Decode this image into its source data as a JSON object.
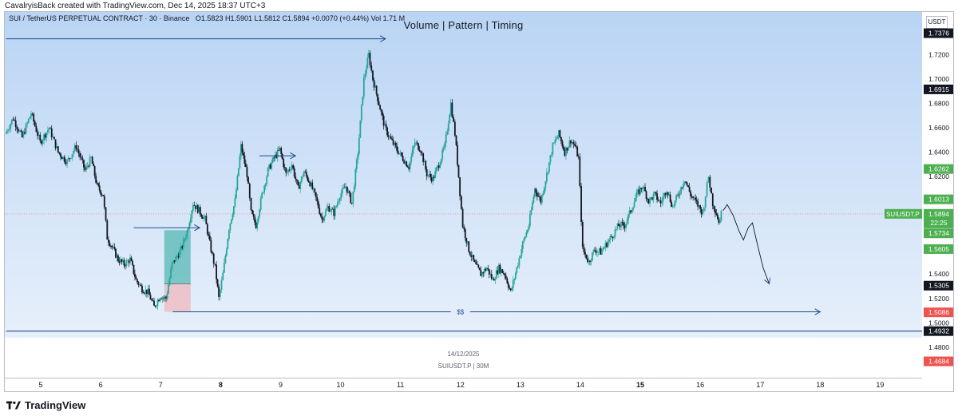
{
  "caption": "CavalryisBack created with TradingView.com, Dec 14, 2025 18:37 UTC+3",
  "symbol_line": {
    "symbol": "SUI / TetherUS PERPETUAL CONTRACT · 30 · Binance",
    "ohlc": "O1.5823  H1.5901  L1.5812  C1.5894  +0.0070 (+0.44%)  Vol 1.71 M"
  },
  "currency": "USDT",
  "footer_brand": "TradingView",
  "colors": {
    "up": "#26a69a",
    "down": "#ef5350",
    "candle_body": "#131722",
    "line": "#1e4d8c",
    "green_label": "#4caf50",
    "red_label": "#ef5350",
    "black_label": "#131722"
  },
  "chart_data": {
    "type": "candlestick",
    "title": "Volume  |  Pattern  |  Timing",
    "watermark_date": "14/12/2025",
    "watermark_symbol": "SUIUSDT.P | 30M",
    "ylim": [
      1.455,
      1.755
    ],
    "xlim": [
      4.4,
      19.7
    ],
    "yticks": [
      "1.7200",
      "1.7000",
      "1.6800",
      "1.6600",
      "1.6400",
      "1.6200",
      "1.5400",
      "1.5200",
      "1.5000",
      "1.4800"
    ],
    "xticks": [
      {
        "x": 5,
        "label": "5",
        "bold": false
      },
      {
        "x": 6,
        "label": "6",
        "bold": false
      },
      {
        "x": 7,
        "label": "7",
        "bold": false
      },
      {
        "x": 8,
        "label": "8",
        "bold": true
      },
      {
        "x": 9,
        "label": "9",
        "bold": false
      },
      {
        "x": 10,
        "label": "10",
        "bold": false
      },
      {
        "x": 11,
        "label": "11",
        "bold": false
      },
      {
        "x": 12,
        "label": "12",
        "bold": false
      },
      {
        "x": 13,
        "label": "13",
        "bold": false
      },
      {
        "x": 14,
        "label": "14",
        "bold": false
      },
      {
        "x": 15,
        "label": "15",
        "bold": true
      },
      {
        "x": 16,
        "label": "16",
        "bold": false
      },
      {
        "x": 17,
        "label": "17",
        "bold": false
      },
      {
        "x": 18,
        "label": "18",
        "bold": false
      },
      {
        "x": 19,
        "label": "19",
        "bold": false
      }
    ],
    "price_labels": [
      {
        "price": 1.7376,
        "text": "1.7376",
        "color": "#131722"
      },
      {
        "price": 1.6915,
        "text": "1.6915",
        "color": "#131722"
      },
      {
        "price": 1.6262,
        "text": "1.6262",
        "color": "#4caf50"
      },
      {
        "price": 1.6013,
        "text": "1.6013",
        "color": "#4caf50"
      },
      {
        "price": 1.5734,
        "text": "1.5734",
        "color": "#4caf50"
      },
      {
        "price": 1.5605,
        "text": "1.5605",
        "color": "#4caf50"
      },
      {
        "price": 1.5305,
        "text": "1.5305",
        "color": "#131722"
      },
      {
        "price": 1.5086,
        "text": "1.5086",
        "color": "#ef5350"
      },
      {
        "price": 1.4932,
        "text": "1.4932",
        "color": "#131722"
      },
      {
        "price": 1.4684,
        "text": "1.4684",
        "color": "#ef5350"
      }
    ],
    "current_price": {
      "price": 1.5894,
      "symbol": "SUIUSDT.P",
      "value": "1.5894",
      "countdown": "22:25"
    },
    "path_points": [
      [
        4.42,
        1.655
      ],
      [
        4.55,
        1.668
      ],
      [
        4.7,
        1.652
      ],
      [
        4.85,
        1.672
      ],
      [
        5.0,
        1.648
      ],
      [
        5.15,
        1.66
      ],
      [
        5.3,
        1.64
      ],
      [
        5.45,
        1.632
      ],
      [
        5.6,
        1.645
      ],
      [
        5.75,
        1.625
      ],
      [
        5.85,
        1.635
      ],
      [
        5.95,
        1.612
      ],
      [
        6.05,
        1.605
      ],
      [
        6.12,
        1.57
      ],
      [
        6.2,
        1.562
      ],
      [
        6.3,
        1.552
      ],
      [
        6.4,
        1.548
      ],
      [
        6.5,
        1.552
      ],
      [
        6.6,
        1.535
      ],
      [
        6.7,
        1.528
      ],
      [
        6.8,
        1.525
      ],
      [
        6.9,
        1.513
      ],
      [
        7.0,
        1.522
      ],
      [
        7.1,
        1.52
      ],
      [
        7.2,
        1.548
      ],
      [
        7.35,
        1.56
      ],
      [
        7.45,
        1.575
      ],
      [
        7.55,
        1.598
      ],
      [
        7.65,
        1.592
      ],
      [
        7.75,
        1.585
      ],
      [
        7.85,
        1.56
      ],
      [
        7.92,
        1.545
      ],
      [
        7.98,
        1.52
      ],
      [
        8.05,
        1.54
      ],
      [
        8.15,
        1.578
      ],
      [
        8.25,
        1.6
      ],
      [
        8.35,
        1.645
      ],
      [
        8.45,
        1.622
      ],
      [
        8.52,
        1.59
      ],
      [
        8.6,
        1.58
      ],
      [
        8.7,
        1.605
      ],
      [
        8.8,
        1.625
      ],
      [
        8.9,
        1.635
      ],
      [
        9.0,
        1.642
      ],
      [
        9.1,
        1.622
      ],
      [
        9.2,
        1.63
      ],
      [
        9.3,
        1.61
      ],
      [
        9.4,
        1.624
      ],
      [
        9.5,
        1.615
      ],
      [
        9.6,
        1.602
      ],
      [
        9.7,
        1.585
      ],
      [
        9.8,
        1.595
      ],
      [
        9.9,
        1.59
      ],
      [
        10.0,
        1.605
      ],
      [
        10.1,
        1.612
      ],
      [
        10.2,
        1.598
      ],
      [
        10.3,
        1.64
      ],
      [
        10.4,
        1.7
      ],
      [
        10.48,
        1.72
      ],
      [
        10.55,
        1.7
      ],
      [
        10.65,
        1.68
      ],
      [
        10.75,
        1.66
      ],
      [
        10.85,
        1.65
      ],
      [
        10.95,
        1.642
      ],
      [
        11.05,
        1.635
      ],
      [
        11.15,
        1.628
      ],
      [
        11.25,
        1.648
      ],
      [
        11.35,
        1.642
      ],
      [
        11.45,
        1.622
      ],
      [
        11.55,
        1.618
      ],
      [
        11.65,
        1.63
      ],
      [
        11.75,
        1.645
      ],
      [
        11.85,
        1.68
      ],
      [
        11.92,
        1.655
      ],
      [
        11.98,
        1.62
      ],
      [
        12.05,
        1.58
      ],
      [
        12.15,
        1.56
      ],
      [
        12.25,
        1.548
      ],
      [
        12.35,
        1.54
      ],
      [
        12.45,
        1.545
      ],
      [
        12.55,
        1.535
      ],
      [
        12.65,
        1.545
      ],
      [
        12.75,
        1.54
      ],
      [
        12.85,
        1.525
      ],
      [
        12.95,
        1.545
      ],
      [
        13.05,
        1.565
      ],
      [
        13.15,
        1.58
      ],
      [
        13.25,
        1.61
      ],
      [
        13.35,
        1.6
      ],
      [
        13.45,
        1.622
      ],
      [
        13.55,
        1.645
      ],
      [
        13.65,
        1.655
      ],
      [
        13.75,
        1.64
      ],
      [
        13.85,
        1.65
      ],
      [
        13.92,
        1.645
      ],
      [
        13.98,
        1.635
      ],
      [
        14.05,
        1.56
      ],
      [
        14.15,
        1.55
      ],
      [
        14.25,
        1.56
      ],
      [
        14.35,
        1.558
      ],
      [
        14.45,
        1.565
      ],
      [
        14.55,
        1.572
      ],
      [
        14.65,
        1.58
      ],
      [
        14.75,
        1.58
      ],
      [
        14.85,
        1.592
      ],
      [
        14.95,
        1.605
      ],
      [
        15.05,
        1.612
      ],
      [
        15.15,
        1.6
      ],
      [
        15.25,
        1.605
      ],
      [
        15.35,
        1.598
      ],
      [
        15.45,
        1.61
      ],
      [
        15.55,
        1.595
      ],
      [
        15.65,
        1.606
      ],
      [
        15.75,
        1.618
      ],
      [
        15.85,
        1.605
      ],
      [
        15.95,
        1.598
      ],
      [
        16.05,
        1.59
      ],
      [
        16.1,
        1.605
      ],
      [
        16.15,
        1.62
      ],
      [
        16.22,
        1.598
      ],
      [
        16.28,
        1.59
      ],
      [
        16.32,
        1.5823
      ],
      [
        16.36,
        1.5894
      ]
    ],
    "projection_points": [
      [
        16.38,
        1.592
      ],
      [
        16.45,
        1.597
      ],
      [
        16.55,
        1.588
      ],
      [
        16.65,
        1.575
      ],
      [
        16.72,
        1.568
      ],
      [
        16.8,
        1.578
      ],
      [
        16.87,
        1.582
      ],
      [
        16.95,
        1.565
      ],
      [
        17.05,
        1.545
      ],
      [
        17.15,
        1.532
      ]
    ],
    "annotations": [
      {
        "type": "arrow-line",
        "from": [
          4.42,
          1.733
        ],
        "to": [
          10.75,
          1.733
        ]
      },
      {
        "type": "arrow-line",
        "from": [
          6.55,
          1.578
        ],
        "to": [
          7.65,
          1.578
        ]
      },
      {
        "type": "arrow-line",
        "from": [
          8.65,
          1.637
        ],
        "to": [
          9.25,
          1.637
        ]
      },
      {
        "type": "arrow-line",
        "from": [
          7.2,
          1.509
        ],
        "to": [
          18.0,
          1.509
        ],
        "label": "$$",
        "label_x": 12.0
      },
      {
        "type": "hline",
        "y": 1.4932,
        "from": 4.42,
        "to": 19.7
      },
      {
        "type": "long-position",
        "x0": 7.06,
        "x1": 7.5,
        "entry": 1.532,
        "target": 1.576,
        "stop": 1.509
      }
    ]
  }
}
